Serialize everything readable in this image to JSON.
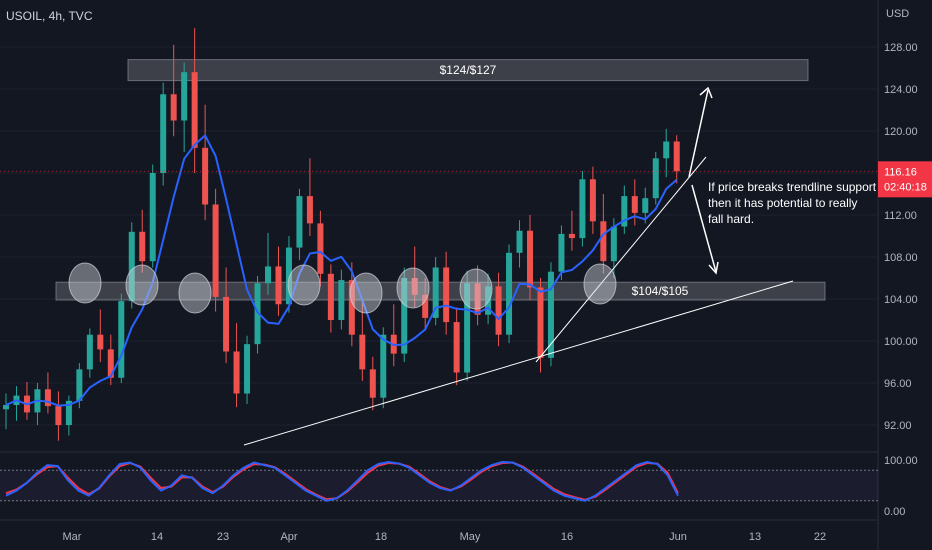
{
  "symbol_label": "USOIL, 4h, TVC",
  "currency": "USD",
  "last_price": {
    "value": "116.16",
    "countdown": "02:40:18",
    "color": "#f23645"
  },
  "colors": {
    "background": "#131722",
    "bull": "#26a69a",
    "bear": "#ef5350",
    "ma": "#2962ff",
    "zone": "#ffffff",
    "stoch_k": "#2962ff",
    "stoch_d": "#f23645"
  },
  "annotation_text": [
    "If price breaks trendline support",
    "then it has potential to really",
    "fall hard."
  ],
  "zones": [
    {
      "label": "$124/$127",
      "low": 124.8,
      "high": 126.8
    },
    {
      "label": "$104/$105",
      "low": 103.9,
      "high": 105.6
    }
  ],
  "chart_data": [
    {
      "type": "candlestick",
      "title": "USOIL, 4h, TVC",
      "ylabel": "USD",
      "ylim": [
        90,
        131
      ],
      "y_ticks": [
        "92.00",
        "96.00",
        "100.00",
        "104.00",
        "108.00",
        "112.00",
        "116.00",
        "120.00",
        "124.00",
        "128.00"
      ],
      "x_ticks": [
        "Mar",
        "14",
        "23",
        "Apr",
        "18",
        "May",
        "16",
        "Jun",
        "13",
        "22"
      ],
      "ohlc_approx": [
        {
          "t": 0,
          "o": 93.5,
          "h": 95.0,
          "l": 91.6,
          "c": 93.9
        },
        {
          "t": 1,
          "o": 93.9,
          "h": 95.7,
          "l": 92.4,
          "c": 94.8
        },
        {
          "t": 2,
          "o": 94.8,
          "h": 96.1,
          "l": 92.5,
          "c": 93.2
        },
        {
          "t": 3,
          "o": 93.2,
          "h": 96.0,
          "l": 92.0,
          "c": 95.4
        },
        {
          "t": 4,
          "o": 95.4,
          "h": 97.0,
          "l": 93.1,
          "c": 93.8
        },
        {
          "t": 5,
          "o": 93.8,
          "h": 95.2,
          "l": 90.5,
          "c": 92.0
        },
        {
          "t": 6,
          "o": 92.0,
          "h": 94.8,
          "l": 91.0,
          "c": 94.3
        },
        {
          "t": 7,
          "o": 94.3,
          "h": 97.9,
          "l": 93.6,
          "c": 97.3
        },
        {
          "t": 8,
          "o": 97.3,
          "h": 101.2,
          "l": 96.5,
          "c": 100.6
        },
        {
          "t": 9,
          "o": 100.6,
          "h": 103.0,
          "l": 98.0,
          "c": 99.2
        },
        {
          "t": 10,
          "o": 99.2,
          "h": 100.6,
          "l": 95.8,
          "c": 96.5
        },
        {
          "t": 11,
          "o": 96.5,
          "h": 104.5,
          "l": 96.0,
          "c": 103.8
        },
        {
          "t": 12,
          "o": 103.8,
          "h": 111.3,
          "l": 103.1,
          "c": 110.4
        },
        {
          "t": 13,
          "o": 110.4,
          "h": 112.5,
          "l": 106.5,
          "c": 107.6
        },
        {
          "t": 14,
          "o": 107.6,
          "h": 116.8,
          "l": 107.0,
          "c": 116.0
        },
        {
          "t": 15,
          "o": 116.0,
          "h": 124.6,
          "l": 114.8,
          "c": 123.5
        },
        {
          "t": 16,
          "o": 123.5,
          "h": 128.2,
          "l": 119.5,
          "c": 121.0
        },
        {
          "t": 17,
          "o": 121.0,
          "h": 126.5,
          "l": 118.0,
          "c": 125.6
        },
        {
          "t": 18,
          "o": 125.6,
          "h": 129.8,
          "l": 116.0,
          "c": 118.4
        },
        {
          "t": 19,
          "o": 118.4,
          "h": 122.5,
          "l": 111.5,
          "c": 113.0
        },
        {
          "t": 20,
          "o": 113.0,
          "h": 114.5,
          "l": 102.8,
          "c": 104.2
        },
        {
          "t": 21,
          "o": 104.2,
          "h": 107.0,
          "l": 97.9,
          "c": 99.0
        },
        {
          "t": 22,
          "o": 99.0,
          "h": 101.7,
          "l": 93.7,
          "c": 95.0
        },
        {
          "t": 23,
          "o": 95.0,
          "h": 100.5,
          "l": 94.0,
          "c": 99.7
        },
        {
          "t": 24,
          "o": 99.7,
          "h": 106.2,
          "l": 98.8,
          "c": 105.5
        },
        {
          "t": 25,
          "o": 105.5,
          "h": 110.3,
          "l": 104.4,
          "c": 107.1
        },
        {
          "t": 26,
          "o": 107.1,
          "h": 109.0,
          "l": 102.4,
          "c": 103.5
        },
        {
          "t": 27,
          "o": 103.5,
          "h": 110.0,
          "l": 102.7,
          "c": 108.9
        },
        {
          "t": 28,
          "o": 108.9,
          "h": 114.5,
          "l": 107.7,
          "c": 113.8
        },
        {
          "t": 29,
          "o": 113.8,
          "h": 117.4,
          "l": 110.0,
          "c": 111.2
        },
        {
          "t": 30,
          "o": 111.2,
          "h": 112.4,
          "l": 105.2,
          "c": 106.4
        },
        {
          "t": 31,
          "o": 106.4,
          "h": 107.3,
          "l": 100.8,
          "c": 102.0
        },
        {
          "t": 32,
          "o": 102.0,
          "h": 106.8,
          "l": 101.1,
          "c": 105.8
        },
        {
          "t": 33,
          "o": 105.8,
          "h": 107.5,
          "l": 99.5,
          "c": 100.6
        },
        {
          "t": 34,
          "o": 100.6,
          "h": 104.0,
          "l": 96.2,
          "c": 97.3
        },
        {
          "t": 35,
          "o": 97.3,
          "h": 98.5,
          "l": 93.4,
          "c": 94.6
        },
        {
          "t": 36,
          "o": 94.6,
          "h": 101.3,
          "l": 93.6,
          "c": 100.6
        },
        {
          "t": 37,
          "o": 100.6,
          "h": 103.5,
          "l": 97.6,
          "c": 98.8
        },
        {
          "t": 38,
          "o": 98.8,
          "h": 107.0,
          "l": 98.0,
          "c": 106.0
        },
        {
          "t": 39,
          "o": 106.0,
          "h": 109.0,
          "l": 103.2,
          "c": 104.4
        },
        {
          "t": 40,
          "o": 104.4,
          "h": 106.0,
          "l": 101.0,
          "c": 102.2
        },
        {
          "t": 41,
          "o": 102.2,
          "h": 108.0,
          "l": 101.5,
          "c": 107.0
        },
        {
          "t": 42,
          "o": 107.0,
          "h": 108.5,
          "l": 100.6,
          "c": 101.8
        },
        {
          "t": 43,
          "o": 101.8,
          "h": 103.2,
          "l": 95.8,
          "c": 97.0
        },
        {
          "t": 44,
          "o": 97.0,
          "h": 106.7,
          "l": 96.2,
          "c": 105.5
        },
        {
          "t": 45,
          "o": 105.5,
          "h": 107.2,
          "l": 101.5,
          "c": 102.5
        },
        {
          "t": 46,
          "o": 102.5,
          "h": 106.4,
          "l": 101.6,
          "c": 105.2
        },
        {
          "t": 47,
          "o": 105.2,
          "h": 106.5,
          "l": 99.5,
          "c": 100.6
        },
        {
          "t": 48,
          "o": 100.6,
          "h": 109.2,
          "l": 99.8,
          "c": 108.4
        },
        {
          "t": 49,
          "o": 108.4,
          "h": 111.5,
          "l": 107.0,
          "c": 110.5
        },
        {
          "t": 50,
          "o": 110.5,
          "h": 112.0,
          "l": 103.9,
          "c": 105.1
        },
        {
          "t": 51,
          "o": 105.1,
          "h": 106.0,
          "l": 97.0,
          "c": 98.4
        },
        {
          "t": 52,
          "o": 98.4,
          "h": 107.5,
          "l": 97.6,
          "c": 106.6
        },
        {
          "t": 53,
          "o": 106.6,
          "h": 111.0,
          "l": 105.8,
          "c": 110.2
        },
        {
          "t": 54,
          "o": 110.2,
          "h": 112.4,
          "l": 108.6,
          "c": 109.8
        },
        {
          "t": 55,
          "o": 109.8,
          "h": 116.2,
          "l": 109.0,
          "c": 115.4
        },
        {
          "t": 56,
          "o": 115.4,
          "h": 116.6,
          "l": 110.2,
          "c": 111.4
        },
        {
          "t": 57,
          "o": 111.4,
          "h": 114.0,
          "l": 106.4,
          "c": 107.6
        },
        {
          "t": 58,
          "o": 107.6,
          "h": 111.7,
          "l": 106.0,
          "c": 110.9
        },
        {
          "t": 59,
          "o": 110.9,
          "h": 114.8,
          "l": 110.2,
          "c": 113.8
        },
        {
          "t": 60,
          "o": 113.8,
          "h": 115.4,
          "l": 111.0,
          "c": 112.2
        },
        {
          "t": 61,
          "o": 112.2,
          "h": 114.6,
          "l": 111.2,
          "c": 113.6
        },
        {
          "t": 62,
          "o": 113.6,
          "h": 118.0,
          "l": 113.0,
          "c": 117.4
        },
        {
          "t": 63,
          "o": 117.4,
          "h": 120.2,
          "l": 115.6,
          "c": 119.0
        },
        {
          "t": 64,
          "o": 119.0,
          "h": 119.6,
          "l": 115.0,
          "c": 116.16
        }
      ]
    },
    {
      "type": "line",
      "title": "",
      "ylim": [
        0,
        100
      ],
      "y_ticks": [
        "0.00",
        "100.00"
      ],
      "series": [
        {
          "values": [
            30,
            40,
            55,
            75,
            90,
            88,
            60,
            40,
            30,
            45,
            70,
            92,
            95,
            85,
            60,
            40,
            50,
            70,
            65,
            45,
            35,
            50,
            70,
            85,
            95,
            90,
            85,
            70,
            55,
            40,
            30,
            20,
            25,
            40,
            60,
            80,
            92,
            96,
            93,
            85,
            70,
            55,
            45,
            40,
            50,
            65,
            80,
            90,
            96,
            95,
            85,
            70,
            55,
            40,
            30,
            25,
            20,
            30,
            45,
            60,
            75,
            90,
            96,
            92,
            70,
            30
          ]
        },
        {
          "values": [
            35,
            42,
            55,
            72,
            86,
            88,
            65,
            45,
            33,
            44,
            68,
            88,
            94,
            87,
            65,
            45,
            48,
            66,
            66,
            48,
            37,
            48,
            67,
            82,
            92,
            91,
            86,
            73,
            58,
            43,
            32,
            23,
            25,
            38,
            56,
            75,
            89,
            94,
            93,
            87,
            73,
            58,
            47,
            41,
            48,
            62,
            77,
            88,
            94,
            95,
            87,
            73,
            58,
            43,
            33,
            27,
            22,
            28,
            42,
            57,
            72,
            87,
            94,
            93,
            75,
            35
          ]
        }
      ]
    }
  ]
}
